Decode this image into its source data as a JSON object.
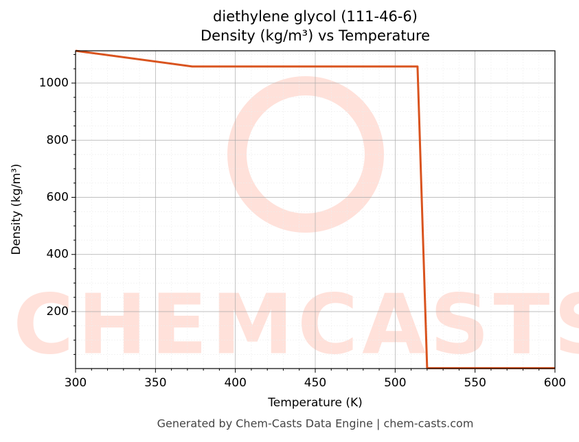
{
  "chart_data": {
    "type": "line",
    "title": "diethylene glycol (111-46-6)",
    "subtitle": "Density (kg/m³) vs Temperature",
    "x_label": "Temperature (K)",
    "y_label": "Density (kg/m³)",
    "watermark": "CHEMCASTS",
    "footer": "Generated by Chem-Casts Data Engine | chem-casts.com",
    "x": [
      300,
      373,
      514,
      520,
      600
    ],
    "series": [
      {
        "name": "Density",
        "color": "#d9531e",
        "values": [
          1113,
          1058,
          1058,
          2,
          2
        ]
      }
    ],
    "xlim": [
      300,
      600
    ],
    "ylim": [
      0.5,
      1113
    ],
    "xticks": [
      300,
      350,
      400,
      450,
      500,
      550,
      600
    ],
    "yticks": [
      200,
      400,
      600,
      800,
      1000
    ],
    "xminorticks": [
      310,
      320,
      330,
      340,
      360,
      370,
      380,
      390,
      410,
      420,
      430,
      440,
      460,
      470,
      480,
      490,
      510,
      520,
      530,
      540,
      560,
      570,
      580,
      590
    ],
    "yminorticks": [
      50,
      100,
      150,
      250,
      300,
      350,
      450,
      500,
      550,
      650,
      700,
      750,
      850,
      900,
      950,
      1050,
      1100
    ],
    "grid": true
  }
}
